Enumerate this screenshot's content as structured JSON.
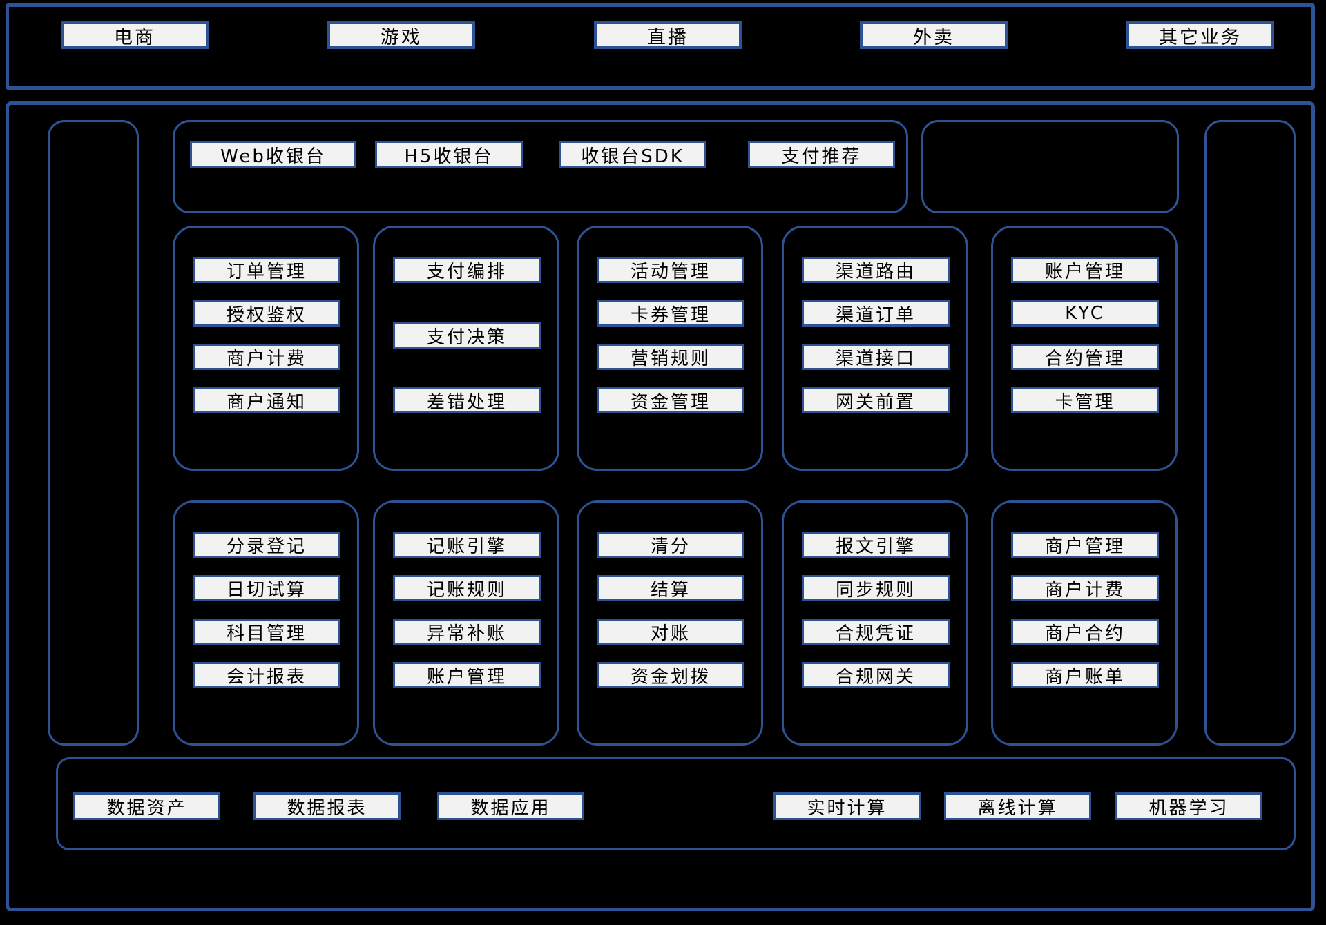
{
  "colors": {
    "bg": "#000000",
    "border": "#2E5394",
    "chip": "#F2F2F2",
    "text": "#000000"
  },
  "business_layer": {
    "items": [
      "电商",
      "游戏",
      "直播",
      "外卖",
      "其它业务"
    ]
  },
  "platform": {
    "checkout": [
      "Web收银台",
      "H5收银台",
      "收银台SDK",
      "支付推荐"
    ],
    "row1": [
      [
        "订单管理",
        "授权鉴权",
        "商户计费",
        "商户通知"
      ],
      [
        "支付编排",
        "支付决策",
        "差错处理"
      ],
      [
        "活动管理",
        "卡券管理",
        "营销规则",
        "资金管理"
      ],
      [
        "渠道路由",
        "渠道订单",
        "渠道接口",
        "网关前置"
      ],
      [
        "账户管理",
        "KYC",
        "合约管理",
        "卡管理"
      ]
    ],
    "row2": [
      [
        "分录登记",
        "日切试算",
        "科目管理",
        "会计报表"
      ],
      [
        "记账引擎",
        "记账规则",
        "异常补账",
        "账户管理"
      ],
      [
        "清分",
        "结算",
        "对账",
        "资金划拨"
      ],
      [
        "报文引擎",
        "同步规则",
        "合规凭证",
        "合规网关"
      ],
      [
        "商户管理",
        "商户计费",
        "商户合约",
        "商户账单"
      ]
    ]
  },
  "data_layer": {
    "items": [
      "数据资产",
      "数据报表",
      "数据应用",
      "实时计算",
      "离线计算",
      "机器学习"
    ]
  }
}
